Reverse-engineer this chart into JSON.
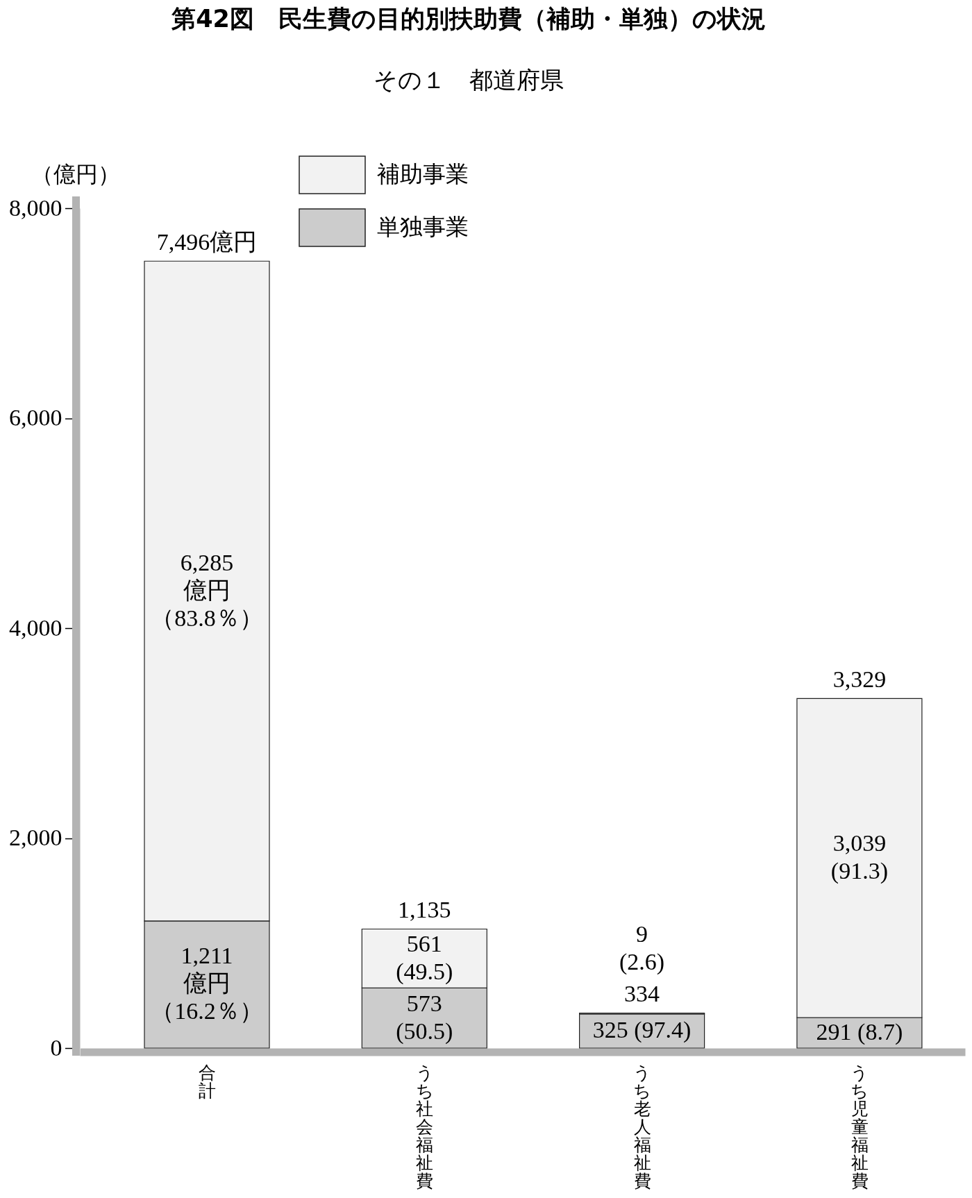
{
  "chart_data": {
    "type": "bar",
    "title": "第42図　民生費の目的別扶助費（補助・単独）の状況",
    "subtitle": "その１　都道府県",
    "ylabel": "（億円）",
    "categories": [
      "合計",
      "うち社会福祉費",
      "うち老人福祉費",
      "うち児童福祉費"
    ],
    "stacked": true,
    "series": [
      {
        "name": "単独事業",
        "color": "#cccccc",
        "values": [
          1211,
          573,
          325,
          291
        ],
        "value_labels": [
          "1,211億円（16.2％）",
          "573\n(50.5)",
          "325\n(97.4)",
          "291\n(8.7)"
        ]
      },
      {
        "name": "補助事業",
        "color": "#f2f2f2",
        "values": [
          6285,
          561,
          9,
          3039
        ],
        "value_labels": [
          "6,285億円（83.8％）",
          "561\n(49.5)",
          "9\n(2.6)",
          "3,039\n(91.3)"
        ]
      }
    ],
    "totals": [
      "7,496億円",
      "1,135",
      "334",
      "3,329"
    ],
    "ylim": [
      0,
      8000
    ],
    "yticks": [
      0,
      {
        "value": 2000,
        "label": "2,000"
      },
      {
        "value": 4000,
        "label": "4,000"
      },
      {
        "value": 6000,
        "label": "6,000"
      },
      {
        "value": 8000,
        "label": "8,000"
      }
    ],
    "grid": false,
    "legend": "top left"
  }
}
